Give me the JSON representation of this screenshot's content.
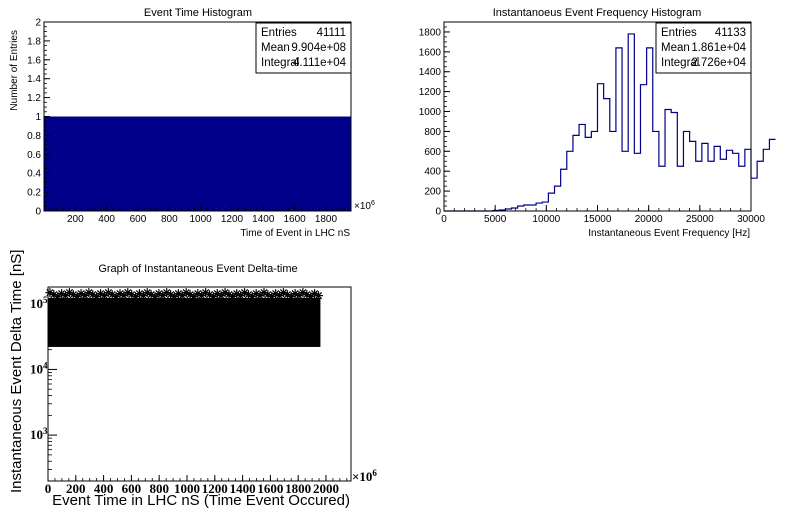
{
  "chart_data": [
    {
      "type": "bar",
      "title": "Event Time Histogram",
      "xlabel": "Time of Event in LHC nS",
      "ylabel": "Number of Entries",
      "x_multiplier": "×10",
      "x_multiplier_exp": "6",
      "xlim": [
        0,
        1960
      ],
      "ylim": [
        0,
        2
      ],
      "xticks": [
        200,
        400,
        600,
        800,
        1000,
        1200,
        1400,
        1600,
        1800
      ],
      "yticks": [
        0,
        0.2,
        0.4,
        0.6,
        0.8,
        1,
        1.2,
        1.4,
        1.6,
        1.8,
        2
      ],
      "bins": [
        {
          "x0": 0,
          "x1": 1960,
          "value": 1
        }
      ],
      "fill_color": "#00008b",
      "stats": [
        {
          "label": "Entries",
          "value": "41111"
        },
        {
          "label": "Mean",
          "value": "9.904e+08"
        },
        {
          "label": "Integral",
          "value": "4.111e+04"
        }
      ]
    },
    {
      "type": "line",
      "title": "Instantanoeus Event Frequency Histogram",
      "xlabel": "Instantaneous Event Frequency [Hz]",
      "ylabel": "",
      "xlim": [
        0,
        30000
      ],
      "ylim": [
        0,
        1900
      ],
      "xticks": [
        0,
        5000,
        10000,
        15000,
        20000,
        25000,
        30000
      ],
      "yticks": [
        0,
        200,
        400,
        600,
        800,
        1000,
        1200,
        1400,
        1600,
        1800
      ],
      "bin_width": 600,
      "bin_start": 0,
      "values": [
        0,
        0,
        0,
        0,
        0,
        0,
        0,
        0,
        5,
        10,
        20,
        30,
        50,
        60,
        60,
        80,
        90,
        180,
        250,
        420,
        600,
        760,
        870,
        740,
        800,
        1280,
        1130,
        800,
        1640,
        600,
        1780,
        580,
        1270,
        1640,
        800,
        450,
        1020,
        990,
        450,
        800,
        700,
        500,
        680,
        500,
        650,
        520,
        610,
        580,
        450,
        620,
        330,
        500,
        620,
        720
      ],
      "line_color": "#00008b",
      "stats": [
        {
          "label": "Entries",
          "value": "41133"
        },
        {
          "label": "Mean",
          "value": "1.861e+04"
        },
        {
          "label": "Integral",
          "value": "2.726e+04"
        }
      ]
    },
    {
      "type": "scatter",
      "title": "Graph of Instantaneous Event Delta-time",
      "xlabel": "Event Time in LHC nS (Time Event Occured)",
      "ylabel": "Instantaneous Event Delta Time [nS]",
      "x_multiplier": "×10",
      "x_multiplier_exp": "6",
      "xlim": [
        0,
        2180
      ],
      "ylim": [
        200,
        180000
      ],
      "log_y": true,
      "xticks": [
        0,
        200,
        400,
        600,
        800,
        1000,
        1200,
        1400,
        1600,
        1800,
        2000
      ],
      "yticks": [
        {
          "value": 1000,
          "base": "10",
          "exp": "3"
        },
        {
          "value": 10000,
          "base": "10",
          "exp": "4"
        },
        {
          "value": 100000,
          "base": "10",
          "exp": "5"
        }
      ],
      "band": {
        "x_min": 0,
        "x_max": 1960,
        "y_min": 22000,
        "y_max": 170000
      },
      "marker_color": "#000000"
    }
  ]
}
